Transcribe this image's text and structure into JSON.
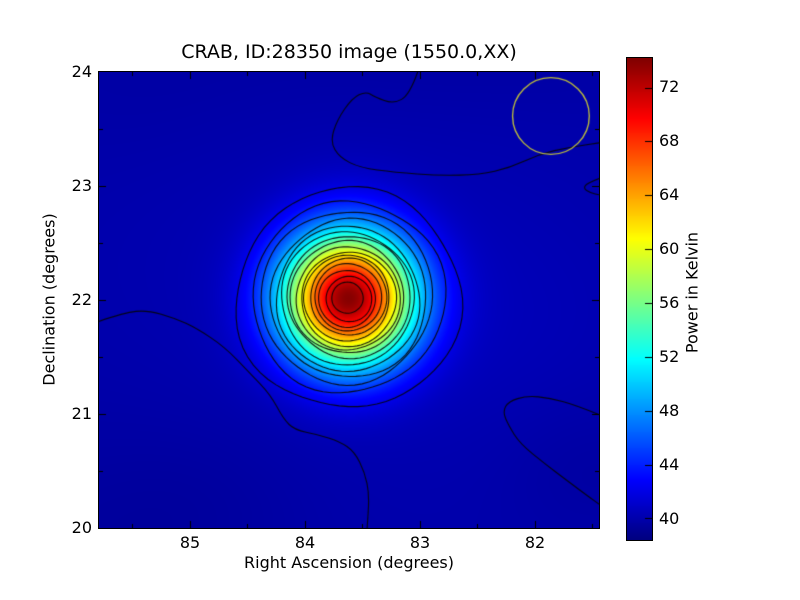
{
  "title": "CRAB, ID:28350 image (1550.0,XX)",
  "xaxis": {
    "label": "Right Ascension (degrees)",
    "ticks": [
      "85",
      "84",
      "83",
      "82"
    ],
    "tick_values": [
      85,
      84,
      83,
      82
    ],
    "minor_tick_values": [
      85.5,
      84.5,
      83.5,
      82.5,
      81.5
    ],
    "range": [
      85.791,
      81.443
    ],
    "inverted": true
  },
  "yaxis": {
    "label": "Declination (degrees)",
    "ticks": [
      "24",
      "23",
      "22",
      "21",
      "20"
    ],
    "tick_values": [
      24,
      23,
      22,
      21,
      20
    ],
    "minor_tick_values": [
      23.5,
      22.5,
      21.5,
      20.5
    ],
    "range": [
      20.0,
      24.0
    ]
  },
  "colorbar": {
    "label": "Power in Kelvin",
    "ticks": [
      "72",
      "68",
      "64",
      "60",
      "56",
      "52",
      "48",
      "44",
      "40"
    ],
    "tick_values": [
      72,
      68,
      64,
      60,
      56,
      52,
      48,
      44,
      40
    ],
    "vmin": 38.4,
    "vmax": 74.2,
    "colormap": "jet"
  },
  "chart_data": {
    "type": "heatmap",
    "title": "CRAB, ID:28350 image (1550.0,XX)",
    "xlabel": "Right Ascension (degrees)",
    "ylabel": "Declination (degrees)",
    "colorbar_label": "Power in Kelvin",
    "units": "Kelvin",
    "colormap": "jet",
    "vmin": 38.4,
    "vmax": 74.2,
    "x_range_deg": [
      85.791,
      81.443
    ],
    "y_range_deg": [
      20.0,
      24.0
    ],
    "background_level_K": 39.85,
    "source": {
      "name": "CRAB",
      "ra_deg": 83.626,
      "dec_deg": 22.018,
      "peak_K": 73.9,
      "sigma_deg": 0.4
    },
    "beam_circle": {
      "ra_deg": 81.861,
      "dec_deg": 23.614,
      "radius_deg": 0.335,
      "color": "#b9b93d"
    },
    "contour_levels_K": [
      42,
      44,
      46,
      48,
      50,
      52,
      54,
      56,
      58,
      60,
      62,
      64,
      66,
      68,
      70,
      72
    ],
    "ring_model": {
      "center_base_K": 40.25,
      "amplitude_K": 33.65,
      "sigma_deg": 0.4
    },
    "background_contour_level_K": 40,
    "background_contours": [
      [
        [
          83.02,
          24.0
        ],
        [
          83.09,
          23.8
        ],
        [
          83.23,
          23.72
        ],
        [
          83.39,
          23.78
        ],
        [
          83.47,
          23.83
        ],
        [
          83.59,
          23.77
        ],
        [
          83.72,
          23.58
        ],
        [
          83.78,
          23.39
        ],
        [
          83.7,
          23.25
        ],
        [
          83.52,
          23.16
        ],
        [
          83.22,
          23.12
        ],
        [
          82.83,
          23.09
        ],
        [
          82.48,
          23.1
        ],
        [
          82.22,
          23.16
        ],
        [
          81.96,
          23.28
        ],
        [
          81.7,
          23.34
        ],
        [
          81.43,
          23.38
        ]
      ],
      [
        [
          85.8,
          21.81
        ],
        [
          85.57,
          21.89
        ],
        [
          85.37,
          21.91
        ],
        [
          85.13,
          21.84
        ],
        [
          84.94,
          21.75
        ],
        [
          84.7,
          21.59
        ],
        [
          84.48,
          21.36
        ],
        [
          84.3,
          21.17
        ],
        [
          84.19,
          20.96
        ],
        [
          84.09,
          20.86
        ],
        [
          83.89,
          20.82
        ],
        [
          83.7,
          20.76
        ],
        [
          83.57,
          20.67
        ],
        [
          83.48,
          20.49
        ],
        [
          83.44,
          20.29
        ],
        [
          83.46,
          19.99
        ]
      ],
      [
        [
          81.43,
          20.99
        ],
        [
          81.65,
          21.08
        ],
        [
          81.87,
          21.14
        ],
        [
          82.07,
          21.16
        ],
        [
          82.23,
          21.11
        ],
        [
          82.28,
          21.02
        ],
        [
          82.23,
          20.9
        ],
        [
          82.13,
          20.74
        ],
        [
          81.91,
          20.56
        ],
        [
          81.7,
          20.4
        ],
        [
          81.54,
          20.28
        ],
        [
          81.43,
          20.2
        ]
      ],
      [
        [
          81.43,
          23.07
        ],
        [
          81.54,
          23.03
        ],
        [
          81.58,
          22.98
        ],
        [
          81.52,
          22.94
        ],
        [
          81.43,
          22.92
        ]
      ]
    ],
    "shading_blobs": [
      [
        83.6,
        22.25,
        1.6,
        1.35,
        0.4
      ],
      [
        82.25,
        21.8,
        0.85,
        0.7,
        0.25
      ],
      [
        85.9,
        19.7,
        1.1,
        0.95,
        -0.4
      ],
      [
        81.55,
        20.55,
        0.55,
        0.42,
        -0.3
      ],
      [
        82.9,
        24.35,
        1.3,
        0.55,
        -0.35
      ],
      [
        84.85,
        20.3,
        0.7,
        0.5,
        -0.25
      ],
      [
        85.3,
        23.9,
        0.9,
        0.6,
        -0.2
      ]
    ]
  }
}
